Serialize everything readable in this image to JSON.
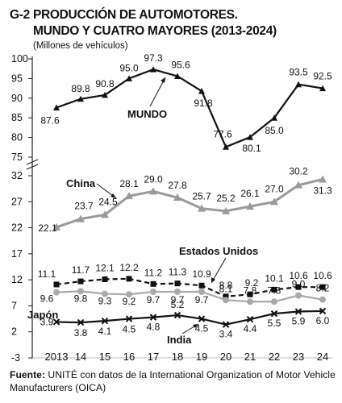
{
  "header": {
    "code": "G-2",
    "title_line1": "PRODUCCIÓN DE AUTOMOTORES.",
    "title_line2": "MUNDO Y CUATRO MAYORES (2013-2024)",
    "subtitle": "(Millones de vehículos)"
  },
  "footer": {
    "source_label": "Fuente:",
    "source_text": "UNITÉ con datos de la International Organization of Motor Vehicle Manufacturers (OICA)"
  },
  "chart_data": [
    {
      "type": "line",
      "title": "",
      "xlabel": "",
      "ylabel": "",
      "x": [
        "2013",
        "14",
        "15",
        "16",
        "17",
        "18",
        "19",
        "20",
        "21",
        "22",
        "23",
        "24"
      ],
      "ylim": [
        75,
        100
      ],
      "yticks": [
        "75",
        "80",
        "85",
        "90",
        "95",
        "100"
      ],
      "series": [
        {
          "name": "MUNDO",
          "values": [
            87.6,
            89.8,
            90.8,
            95.0,
            97.3,
            95.6,
            91.8,
            77.6,
            80.1,
            85.0,
            93.5,
            92.5
          ],
          "labels": [
            "87.6",
            "89.8",
            "90.8",
            "95.0",
            "97.3",
            "95.6",
            "91.8",
            "77.6",
            "80.1",
            "85.0",
            "93.5",
            "92.5"
          ]
        }
      ]
    },
    {
      "type": "line",
      "title": "",
      "xlabel": "",
      "ylabel": "",
      "x": [
        "2013",
        "14",
        "15",
        "16",
        "17",
        "18",
        "19",
        "20",
        "21",
        "22",
        "23",
        "24"
      ],
      "ylim": [
        -3,
        32
      ],
      "yticks": [
        "-3",
        "2",
        "7",
        "12",
        "17",
        "22",
        "27",
        "32"
      ],
      "series": [
        {
          "name": "China",
          "values": [
            22.1,
            23.7,
            24.5,
            28.1,
            29.0,
            27.8,
            25.7,
            25.2,
            26.1,
            27.0,
            30.2,
            31.3
          ],
          "labels": [
            "22.1",
            "23.7",
            "24.5",
            "28.1",
            "29.0",
            "27.8",
            "25.7",
            "25.2",
            "26.1",
            "27.0",
            "30.2",
            "31.3"
          ]
        },
        {
          "name": "Estados Unidos",
          "values": [
            11.1,
            11.7,
            12.1,
            12.2,
            11.2,
            11.3,
            10.9,
            8.8,
            9.2,
            10.1,
            10.6,
            10.6
          ],
          "labels": [
            "11.1",
            "11.7",
            "12.1",
            "12.2",
            "11.2",
            "11.3",
            "10.9",
            "8.8",
            "9.2",
            "10.1",
            "10.6",
            "10.6"
          ]
        },
        {
          "name": "Japón",
          "values": [
            9.6,
            9.8,
            9.3,
            9.2,
            9.7,
            9.7,
            9.7,
            8.1,
            7.8,
            7.8,
            9.0,
            8.2
          ],
          "labels": [
            "9.6",
            "9.8",
            "9.3",
            "9.2",
            "9.7",
            "9.7",
            "9.7",
            "8.1",
            "7.8",
            "7.8",
            "9.0",
            "8.2"
          ]
        },
        {
          "name": "India",
          "values": [
            3.9,
            3.8,
            4.1,
            4.5,
            4.8,
            5.2,
            4.5,
            3.4,
            4.4,
            5.5,
            5.9,
            6.0
          ],
          "labels": [
            "3.9",
            "3.8",
            "4.1",
            "4.5",
            "4.8",
            "5.2",
            "4.5",
            "3.4",
            "4.4",
            "5.5",
            "5.9",
            "6.0"
          ]
        }
      ]
    }
  ]
}
